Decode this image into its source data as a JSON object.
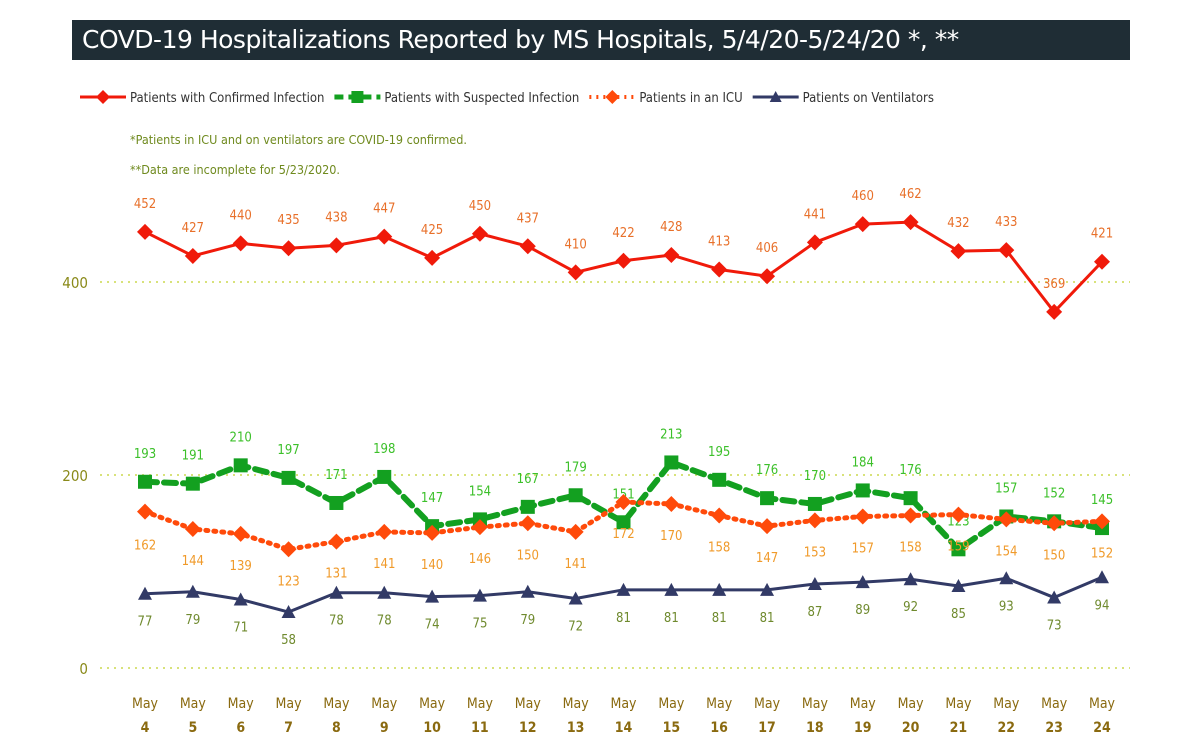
{
  "chart_data": {
    "type": "line",
    "title": "COVD-19 Hospitalizations Reported by MS Hospitals, 5/4/20-5/24/20 *, **",
    "notes": [
      "*Patients in ICU and on ventilators are COVID-19 confirmed.",
      "**Data are incomplete for 5/23/2020."
    ],
    "categories": [
      [
        "May",
        "4"
      ],
      [
        "May",
        "5"
      ],
      [
        "May",
        "6"
      ],
      [
        "May",
        "7"
      ],
      [
        "May",
        "8"
      ],
      [
        "May",
        "9"
      ],
      [
        "May",
        "10"
      ],
      [
        "May",
        "11"
      ],
      [
        "May",
        "12"
      ],
      [
        "May",
        "13"
      ],
      [
        "May",
        "14"
      ],
      [
        "May",
        "15"
      ],
      [
        "May",
        "16"
      ],
      [
        "May",
        "17"
      ],
      [
        "May",
        "18"
      ],
      [
        "May",
        "19"
      ],
      [
        "May",
        "20"
      ],
      [
        "May",
        "21"
      ],
      [
        "May",
        "22"
      ],
      [
        "May",
        "23"
      ],
      [
        "May",
        "24"
      ]
    ],
    "yticks": [
      0,
      200,
      400
    ],
    "ylim": [
      0,
      480
    ],
    "grid": true,
    "legend": "top",
    "series": [
      {
        "name": "Patients with Confirmed Infection",
        "color": "#f01a0a",
        "label_color": "#e8702a",
        "marker": "diamond",
        "dash": "solid",
        "label_pos": "above",
        "values": [
          452,
          427,
          440,
          435,
          438,
          447,
          425,
          450,
          437,
          410,
          422,
          428,
          413,
          406,
          441,
          460,
          462,
          432,
          433,
          369,
          421
        ]
      },
      {
        "name": "Patients with Suspected Infection",
        "color": "#13a020",
        "label_color": "#3cc02a",
        "marker": "square",
        "dash": "dashed",
        "label_pos": "above",
        "values": [
          193,
          191,
          210,
          197,
          171,
          198,
          147,
          154,
          167,
          179,
          151,
          213,
          195,
          176,
          170,
          184,
          176,
          123,
          157,
          152,
          145
        ]
      },
      {
        "name": "Patients in an ICU",
        "color": "#ff4a0a",
        "label_color": "#f09a2a",
        "marker": "diamond",
        "dash": "dotted",
        "label_pos": "below",
        "values": [
          162,
          144,
          139,
          123,
          131,
          141,
          140,
          146,
          150,
          141,
          172,
          170,
          158,
          147,
          153,
          157,
          158,
          159,
          154,
          150,
          152
        ]
      },
      {
        "name": "Patients on Ventilators",
        "color": "#323a66",
        "label_color": "#6f8a2e",
        "marker": "triangle",
        "dash": "solid",
        "label_pos": "below",
        "values": [
          77,
          79,
          71,
          58,
          78,
          78,
          74,
          75,
          79,
          72,
          81,
          81,
          81,
          81,
          87,
          89,
          92,
          85,
          93,
          73,
          94
        ]
      }
    ]
  }
}
